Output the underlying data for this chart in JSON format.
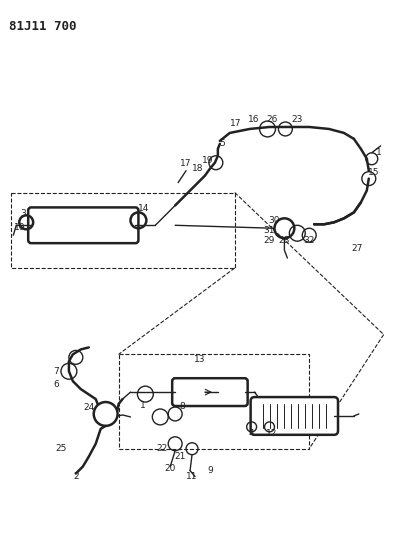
{
  "title": "81J11 700",
  "bg_color": "#ffffff",
  "line_color": "#222222",
  "title_fontsize": 9,
  "label_fontsize": 6.5,
  "figsize": [
    3.96,
    5.33
  ],
  "dpi": 100
}
